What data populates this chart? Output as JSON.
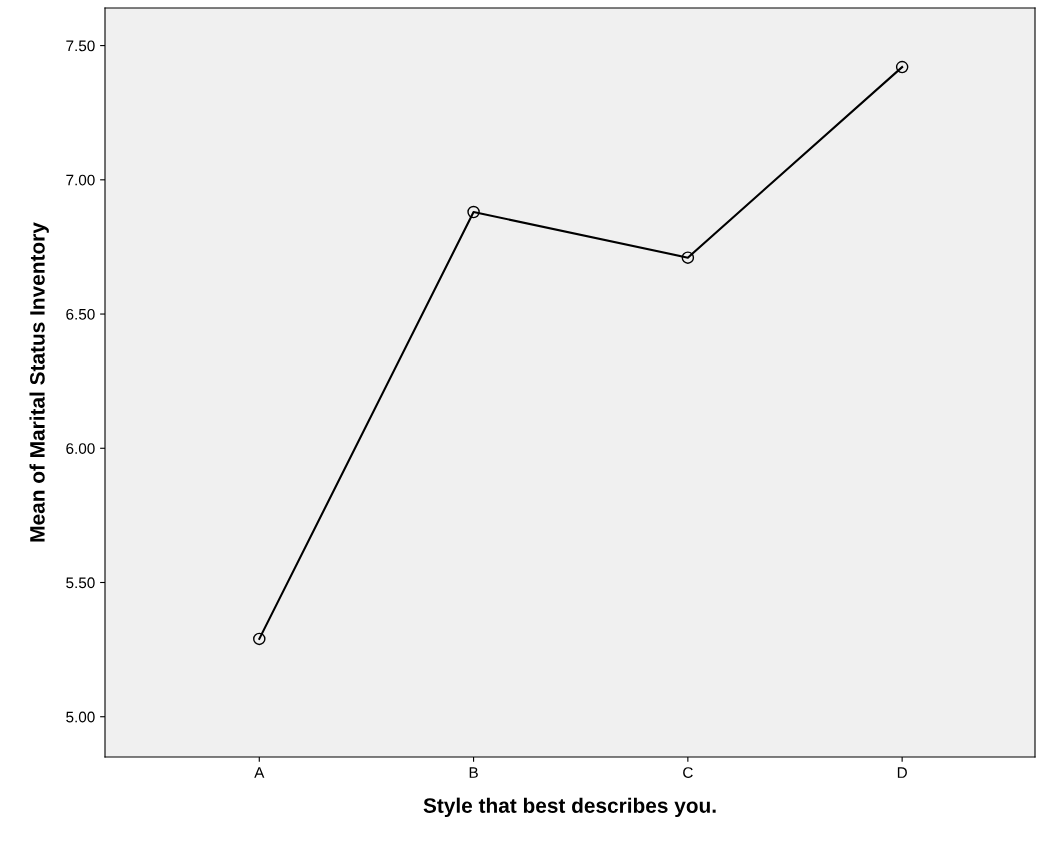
{
  "chart_data": {
    "type": "line",
    "xlabel": "Style that best describes you.",
    "ylabel": "Mean of Marital Status Inventory",
    "categories": [
      "A",
      "B",
      "C",
      "D"
    ],
    "series": [
      {
        "color": "#000000",
        "values": [
          5.29,
          6.88,
          6.71,
          7.42
        ]
      }
    ],
    "ylim": [
      4.85,
      7.64
    ],
    "yticks": [
      {
        "value": 5.0,
        "label": "5.00"
      },
      {
        "value": 5.5,
        "label": "5.50"
      },
      {
        "value": 6.0,
        "label": "6.00"
      },
      {
        "value": 6.5,
        "label": "6.50"
      },
      {
        "value": 7.0,
        "label": "7.00"
      },
      {
        "value": 7.5,
        "label": "7.50"
      }
    ],
    "marker": "circle",
    "line_style": "solid",
    "grid": false,
    "legend": false
  }
}
